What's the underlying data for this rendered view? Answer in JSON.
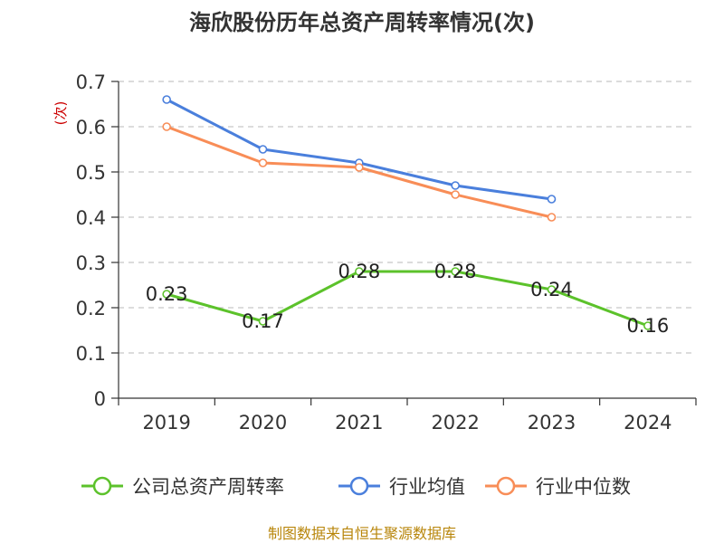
{
  "chart_data": {
    "type": "line",
    "title": "海欣股份历年总资产周转率情况(次)",
    "ylabel": "(次)",
    "xlabel": "",
    "ylim": [
      0,
      0.7
    ],
    "yticks": [
      0,
      0.1,
      0.2,
      0.3,
      0.4,
      0.5,
      0.6,
      0.7
    ],
    "ytick_labels": [
      "0",
      "0.1",
      "0.2",
      "0.3",
      "0.4",
      "0.5",
      "0.6",
      "0.7"
    ],
    "categories": [
      "2019",
      "2020",
      "2021",
      "2022",
      "2023",
      "2024"
    ],
    "grid": true,
    "legend_position": "bottom",
    "series": [
      {
        "name": "公司总资产周转率",
        "color": "#5cc22b",
        "values": [
          0.23,
          0.17,
          0.28,
          0.28,
          0.24,
          0.16
        ],
        "labels": [
          "0.23",
          "0.17",
          "0.28",
          "0.28",
          "0.24",
          "0.16"
        ]
      },
      {
        "name": "行业均值",
        "color": "#4a7fdc",
        "values": [
          0.66,
          0.55,
          0.52,
          0.47,
          0.44,
          null
        ]
      },
      {
        "name": "行业中位数",
        "color": "#f88d57",
        "values": [
          0.6,
          0.52,
          0.51,
          0.45,
          0.4,
          null
        ]
      }
    ],
    "source": "制图数据来自恒生聚源数据库"
  }
}
